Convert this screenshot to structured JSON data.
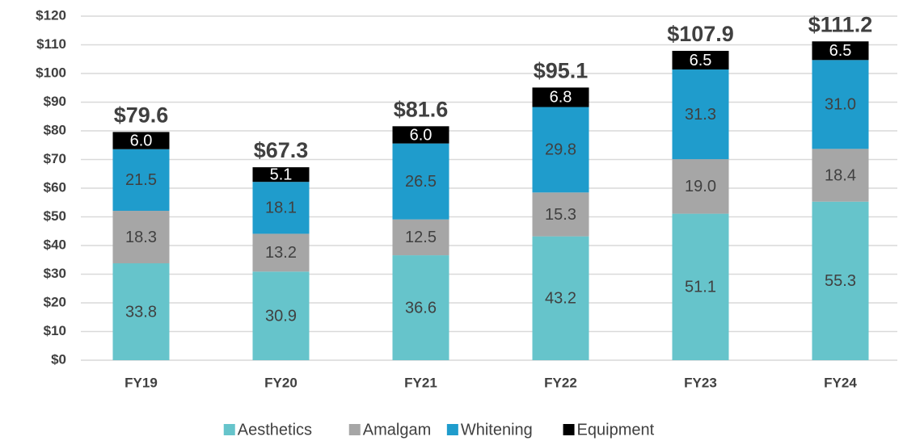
{
  "chart_data": {
    "type": "stacked_bar",
    "categories": [
      "FY19",
      "FY20",
      "FY21",
      "FY22",
      "FY23",
      "FY24"
    ],
    "series": [
      {
        "name": "Aesthetics",
        "color": "#66c4cb",
        "values": [
          33.8,
          30.9,
          36.6,
          43.2,
          51.1,
          55.3
        ]
      },
      {
        "name": "Amalgam",
        "color": "#a6a6a6",
        "values": [
          18.3,
          13.2,
          12.5,
          15.3,
          19.0,
          18.4
        ],
        "value_labels": [
          "18.3",
          "13.2",
          "12.5",
          "15.3",
          "19.0",
          "18.4"
        ]
      },
      {
        "name": "Whitening",
        "color": "#1f9ccc",
        "values": [
          21.5,
          18.1,
          26.5,
          29.8,
          31.3,
          31.0
        ],
        "value_labels": [
          "21.5",
          "18.1",
          "26.5",
          "29.8",
          "31.3",
          "31.0"
        ]
      },
      {
        "name": "Equipment",
        "color": "#000000",
        "values": [
          6.0,
          5.1,
          6.0,
          6.8,
          6.5,
          6.5
        ],
        "value_labels": [
          "6.0",
          "5.1",
          "6.0",
          "6.8",
          "6.5",
          "6.5"
        ]
      }
    ],
    "totals": [
      79.6,
      67.3,
      81.6,
      95.1,
      107.9,
      111.2
    ],
    "total_labels": [
      "$79.6",
      "$67.3",
      "$81.6",
      "$95.1",
      "$107.9",
      "$111.2"
    ],
    "ylim": [
      0,
      120
    ],
    "yticks": [
      {
        "value": 0,
        "label": "$0"
      },
      {
        "value": 10,
        "label": "$10"
      },
      {
        "value": 20,
        "label": "$20"
      },
      {
        "value": 30,
        "label": "$30"
      },
      {
        "value": 40,
        "label": "$40"
      },
      {
        "value": 50,
        "label": "$50"
      },
      {
        "value": 60,
        "label": "$60"
      },
      {
        "value": 70,
        "label": "$70"
      },
      {
        "value": 80,
        "label": "$80"
      },
      {
        "value": 90,
        "label": "$90"
      },
      {
        "value": 100,
        "label": "$100"
      },
      {
        "value": 110,
        "label": "$110"
      },
      {
        "value": 120,
        "label": "$120"
      }
    ],
    "grid": true,
    "legend": "bottom"
  }
}
